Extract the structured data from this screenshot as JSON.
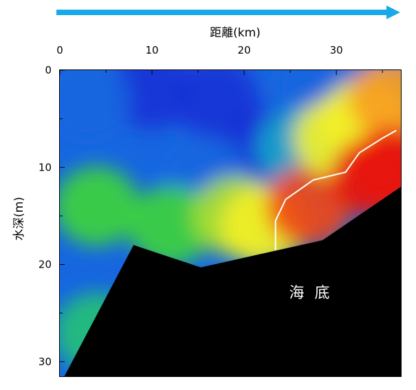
{
  "chart_data": {
    "type": "heatmap",
    "title": "",
    "xlabel": "距離(km)",
    "ylabel": "水深(m)",
    "xlim": [
      0,
      37
    ],
    "ylim": [
      0,
      31.5
    ],
    "y_inverted": true,
    "x_axis_position": "top",
    "x_ticks": [
      0,
      10,
      20,
      30
    ],
    "y_ticks": [
      0,
      10,
      20,
      30
    ],
    "direction_arrow_color": "#1aa9e8",
    "colormap": [
      "#1a33d6",
      "#1766e0",
      "#16a6c8",
      "#22c07a",
      "#3ed23c",
      "#a8e030",
      "#f2f028",
      "#f8a020",
      "#f04818",
      "#e81410"
    ],
    "seabed_label": "海 底",
    "seabed_profile": [
      {
        "x": 0.5,
        "y": 31.5
      },
      {
        "x": 8.0,
        "y": 18.0
      },
      {
        "x": 15.3,
        "y": 20.3
      },
      {
        "x": 28.5,
        "y": 17.5
      },
      {
        "x": 37.0,
        "y": 12.0
      }
    ],
    "contour_line": [
      {
        "x": 23.4,
        "y": 18.5
      },
      {
        "x": 23.4,
        "y": 15.5
      },
      {
        "x": 24.5,
        "y": 13.3
      },
      {
        "x": 27.5,
        "y": 11.3
      },
      {
        "x": 31.0,
        "y": 10.5
      },
      {
        "x": 32.5,
        "y": 8.5
      },
      {
        "x": 35.0,
        "y": 7.0
      },
      {
        "x": 36.5,
        "y": 6.2
      }
    ],
    "field_description": "low values near surface and offshore, high values near bottom toward 30-37 km",
    "field_blobs": [
      {
        "x": 17,
        "y": 3,
        "level": 0.0
      },
      {
        "x": 22,
        "y": 8,
        "level": 0.0
      },
      {
        "x": 10,
        "y": 2,
        "level": 0.05
      },
      {
        "x": 3,
        "y": 3,
        "level": 0.1
      },
      {
        "x": 28,
        "y": 2,
        "level": 0.1
      },
      {
        "x": 34,
        "y": 1,
        "level": 0.1
      },
      {
        "x": 16,
        "y": 11,
        "level": 0.15
      },
      {
        "x": 26,
        "y": 8,
        "level": 0.22
      },
      {
        "x": 4,
        "y": 14,
        "level": 0.4
      },
      {
        "x": 4,
        "y": 27,
        "level": 0.32
      },
      {
        "x": 12,
        "y": 16,
        "level": 0.45
      },
      {
        "x": 19,
        "y": 15,
        "level": 0.55
      },
      {
        "x": 22,
        "y": 16,
        "level": 0.72
      },
      {
        "x": 27,
        "y": 14,
        "level": 0.85
      },
      {
        "x": 30,
        "y": 7,
        "level": 0.62
      },
      {
        "x": 33,
        "y": 5,
        "level": 0.7
      },
      {
        "x": 36,
        "y": 3,
        "level": 0.78
      },
      {
        "x": 34,
        "y": 11,
        "level": 0.95
      },
      {
        "x": 36,
        "y": 10,
        "level": 1.0
      }
    ]
  }
}
